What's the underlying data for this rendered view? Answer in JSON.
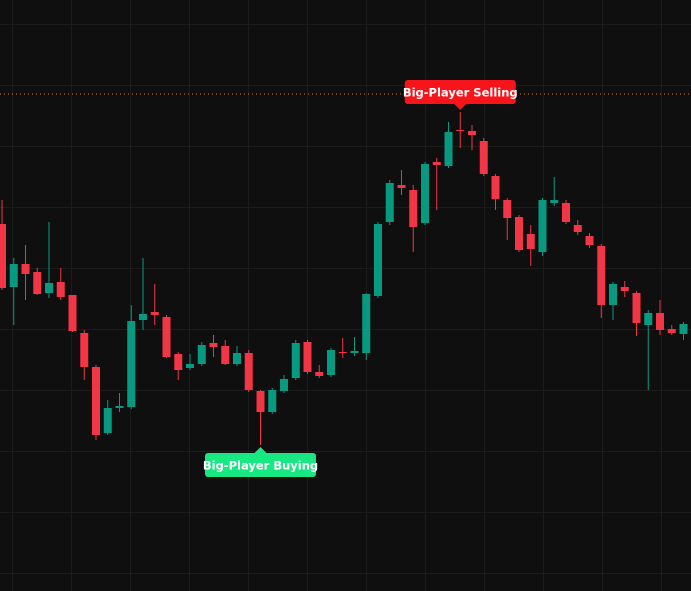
{
  "chart_data": {
    "type": "candlestick",
    "up_color": "#089981",
    "down_color": "#f23645",
    "ylim": [
      0,
      591
    ],
    "open": [
      367,
      304,
      327,
      319,
      298,
      309,
      296,
      258,
      224,
      158,
      183,
      184,
      271,
      279,
      274,
      237,
      223,
      227,
      248,
      245,
      227,
      238,
      200,
      179,
      200,
      213,
      249,
      219,
      216,
      239,
      238,
      238,
      295,
      369,
      406,
      401,
      368,
      429,
      425,
      461,
      460,
      450,
      415,
      391,
      374,
      357,
      339,
      388,
      388,
      366,
      355,
      345,
      286,
      304,
      298,
      266,
      278,
      262,
      257
    ],
    "high": [
      391,
      333,
      346,
      323,
      369,
      323,
      296,
      261,
      226,
      191,
      198,
      286,
      333,
      307,
      276,
      239,
      237,
      249,
      256,
      251,
      245,
      241,
      201,
      203,
      216,
      251,
      251,
      226,
      243,
      253,
      254,
      298,
      369,
      411,
      421,
      406,
      429,
      433,
      469,
      479,
      466,
      453,
      417,
      393,
      376,
      366,
      393,
      414,
      391,
      371,
      358,
      347,
      309,
      310,
      300,
      281,
      291,
      266,
      269
    ],
    "low": [
      301,
      266,
      291,
      296,
      293,
      291,
      259,
      211,
      151,
      156,
      179,
      182,
      261,
      266,
      233,
      211,
      221,
      225,
      234,
      226,
      225,
      199,
      146,
      177,
      198,
      211,
      217,
      213,
      214,
      233,
      235,
      231,
      293,
      366,
      396,
      339,
      366,
      381,
      423,
      443,
      441,
      415,
      381,
      351,
      339,
      325,
      335,
      385,
      367,
      356,
      343,
      273,
      271,
      294,
      255,
      201,
      256,
      256,
      251
    ],
    "close": [
      303,
      327,
      317,
      297,
      308,
      294,
      260,
      224,
      156,
      183,
      185,
      270,
      277,
      276,
      234,
      221,
      227,
      246,
      244,
      227,
      238,
      201,
      179,
      201,
      212,
      248,
      219,
      215,
      241,
      238,
      240,
      297,
      367,
      408,
      403,
      364,
      427,
      426,
      459,
      460,
      456,
      417,
      392,
      373,
      341,
      342,
      391,
      391,
      369,
      359,
      346,
      286,
      307,
      300,
      268,
      278,
      261,
      258,
      267
    ],
    "price_line": {
      "value": 497,
      "color": "#e0703a"
    },
    "annotations": [
      {
        "text": "Big-Player Selling",
        "x": 39,
        "anchor": "high",
        "color": "#f7141a"
      },
      {
        "text": "Big-Player Buying",
        "x": 22,
        "anchor": "low",
        "color": "#17e882"
      }
    ]
  }
}
